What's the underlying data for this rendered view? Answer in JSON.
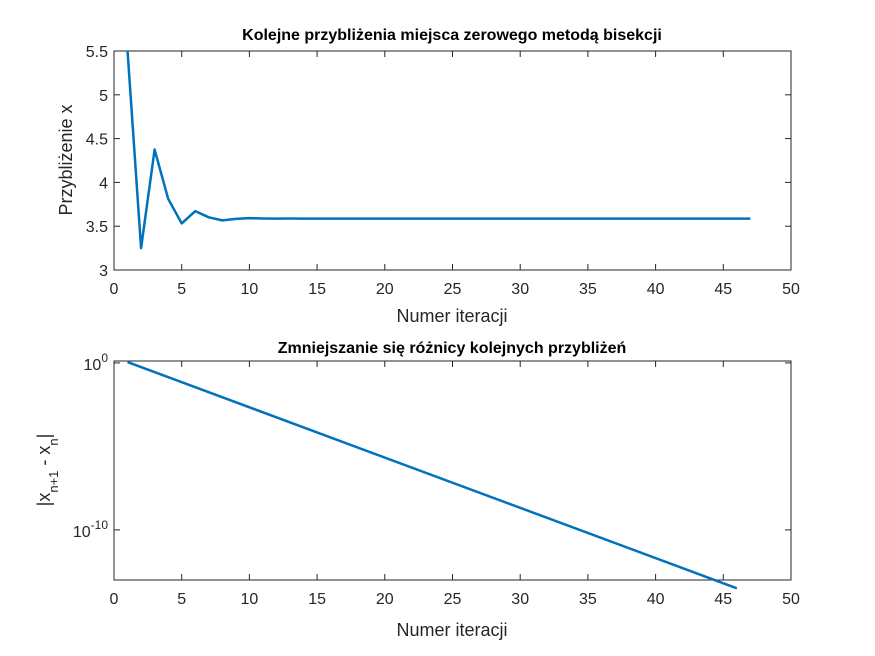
{
  "chart_data": [
    {
      "type": "line",
      "title": "Kolejne przybliżenia miejsca zerowego metodą bisekcji",
      "xlabel": "Numer iteracji",
      "ylabel": "Przybliżenie x",
      "xlim": [
        0,
        50
      ],
      "ylim": [
        3,
        5.5
      ],
      "yscale": "linear",
      "grid": false,
      "xticks": [
        "0",
        "5",
        "10",
        "15",
        "20",
        "25",
        "30",
        "35",
        "40",
        "45",
        "50"
      ],
      "yticks": [
        "3",
        "3.5",
        "4",
        "4.5",
        "5",
        "5.5"
      ],
      "color": "#0072BD",
      "series": [
        {
          "x": [
            1,
            2,
            3,
            4,
            5,
            6,
            7,
            8,
            9,
            10,
            11,
            12,
            13,
            14,
            15,
            16,
            17,
            18,
            19,
            20,
            21,
            22,
            23,
            24,
            25,
            26,
            27,
            28,
            29,
            30,
            31,
            32,
            33,
            34,
            35,
            36,
            37,
            38,
            39,
            40,
            41,
            42,
            43,
            44,
            45,
            46,
            47
          ],
          "y": [
            5.5,
            3.25,
            4.375,
            3.8125,
            3.53125,
            3.671875,
            3.6015625,
            3.5664063,
            3.5839844,
            3.5927734,
            3.5883789,
            3.5861816,
            3.5872803,
            3.586731,
            3.5870056,
            3.5868683,
            3.586937,
            3.5869026,
            3.5869198,
            3.5869112,
            3.5869155,
            3.5869134,
            3.5869144,
            3.5869139,
            3.5869142,
            3.586914,
            3.5869141,
            3.5869141,
            3.5869141,
            3.5869141,
            3.5869141,
            3.5869141,
            3.5869141,
            3.5869141,
            3.5869141,
            3.5869141,
            3.5869141,
            3.5869141,
            3.5869141,
            3.5869141,
            3.5869141,
            3.5869141,
            3.5869141,
            3.5869141,
            3.5869141,
            3.5869141,
            3.5869141
          ]
        }
      ]
    },
    {
      "type": "line",
      "title": "Zmniejszanie się różnicy kolejnych przybliżeń",
      "xlabel": "Numer iteracji",
      "ylabel": "|x_{n+1} - x_n|",
      "xlim": [
        0,
        50
      ],
      "ylim": [
        1e-13,
        1.3
      ],
      "yscale": "log",
      "grid": false,
      "xticks": [
        "0",
        "5",
        "10",
        "15",
        "20",
        "25",
        "30",
        "35",
        "40",
        "45",
        "50"
      ],
      "yticks": [
        {
          "value": 1,
          "base": "10",
          "exp": "0"
        },
        {
          "value": 1e-10,
          "base": "10",
          "exp": "-10"
        }
      ],
      "color": "#0072BD",
      "series": [
        {
          "x": [
            1,
            46
          ],
          "y": [
            1.125,
            3.197e-14
          ],
          "note_ratio": 0.5
        }
      ]
    }
  ]
}
